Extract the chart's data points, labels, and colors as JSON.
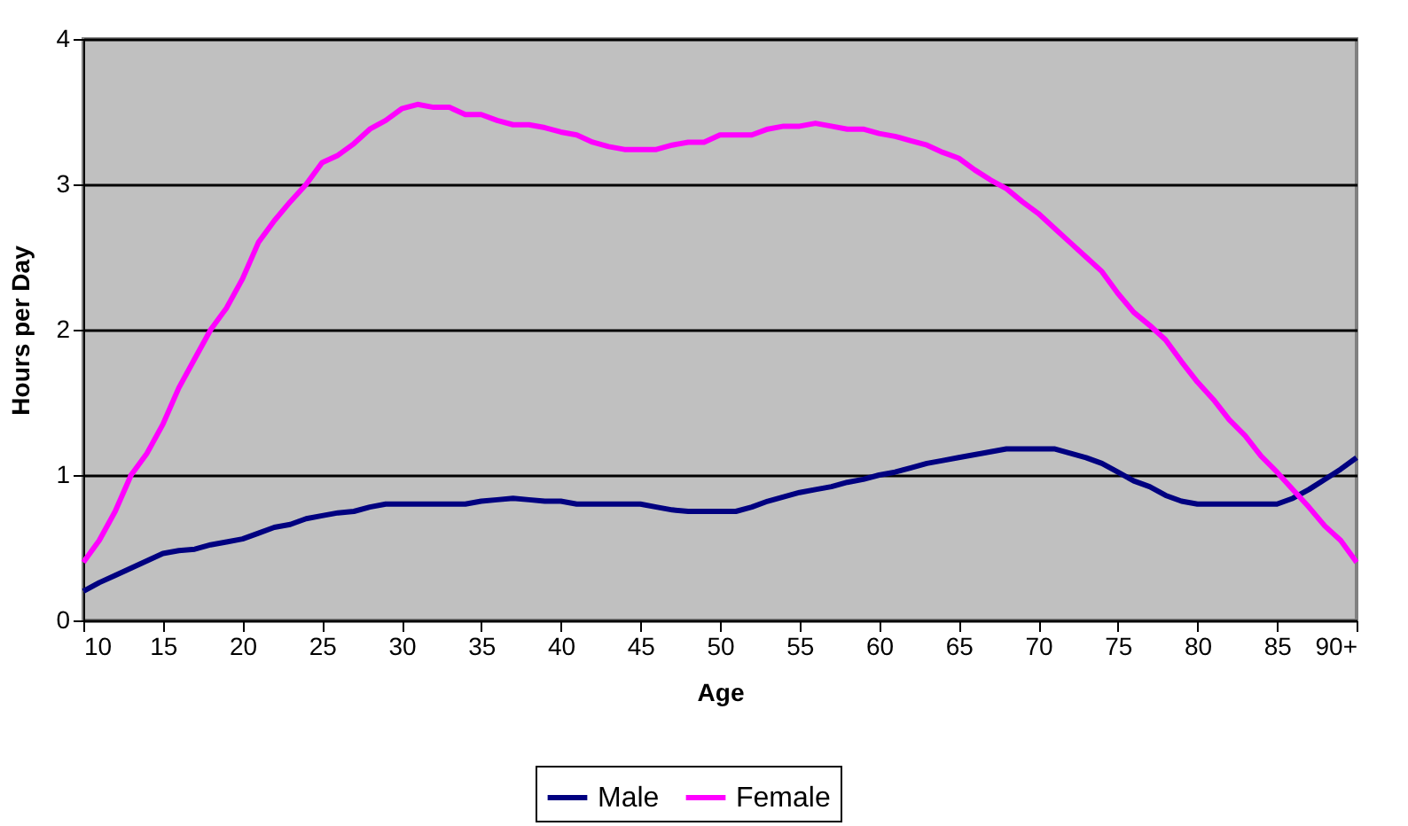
{
  "chart_data": {
    "type": "line",
    "xlabel": "Age",
    "ylabel": "Hours per Day",
    "x": [
      10,
      11,
      12,
      13,
      14,
      15,
      16,
      17,
      18,
      19,
      20,
      21,
      22,
      23,
      24,
      25,
      26,
      27,
      28,
      29,
      30,
      31,
      32,
      33,
      34,
      35,
      36,
      37,
      38,
      39,
      40,
      41,
      42,
      43,
      44,
      45,
      46,
      47,
      48,
      49,
      50,
      51,
      52,
      53,
      54,
      55,
      56,
      57,
      58,
      59,
      60,
      61,
      62,
      63,
      64,
      65,
      66,
      67,
      68,
      69,
      70,
      71,
      72,
      73,
      74,
      75,
      76,
      77,
      78,
      79,
      80,
      81,
      82,
      83,
      84,
      85,
      86,
      87,
      88,
      89,
      90
    ],
    "series": [
      {
        "name": "Male",
        "color": "#000080",
        "values": [
          0.2,
          0.26,
          0.31,
          0.36,
          0.41,
          0.46,
          0.48,
          0.49,
          0.52,
          0.54,
          0.56,
          0.6,
          0.64,
          0.66,
          0.7,
          0.72,
          0.74,
          0.75,
          0.78,
          0.8,
          0.8,
          0.8,
          0.8,
          0.8,
          0.8,
          0.82,
          0.83,
          0.84,
          0.83,
          0.82,
          0.82,
          0.8,
          0.8,
          0.8,
          0.8,
          0.8,
          0.78,
          0.76,
          0.75,
          0.75,
          0.75,
          0.75,
          0.78,
          0.82,
          0.85,
          0.88,
          0.9,
          0.92,
          0.95,
          0.97,
          1.0,
          1.02,
          1.05,
          1.08,
          1.1,
          1.12,
          1.14,
          1.16,
          1.18,
          1.18,
          1.18,
          1.18,
          1.15,
          1.12,
          1.08,
          1.02,
          0.96,
          0.92,
          0.86,
          0.82,
          0.8,
          0.8,
          0.8,
          0.8,
          0.8,
          0.8,
          0.84,
          0.9,
          0.97,
          1.04,
          1.12
        ]
      },
      {
        "name": "Female",
        "color": "#ff00ff",
        "values": [
          0.4,
          0.55,
          0.75,
          1.0,
          1.15,
          1.35,
          1.6,
          1.8,
          2.0,
          2.15,
          2.35,
          2.6,
          2.75,
          2.88,
          3.0,
          3.15,
          3.2,
          3.28,
          3.38,
          3.44,
          3.52,
          3.55,
          3.53,
          3.53,
          3.48,
          3.48,
          3.44,
          3.41,
          3.41,
          3.39,
          3.36,
          3.34,
          3.29,
          3.26,
          3.24,
          3.24,
          3.24,
          3.27,
          3.29,
          3.29,
          3.34,
          3.34,
          3.34,
          3.38,
          3.4,
          3.4,
          3.42,
          3.4,
          3.38,
          3.38,
          3.35,
          3.33,
          3.3,
          3.27,
          3.22,
          3.18,
          3.1,
          3.03,
          2.97,
          2.88,
          2.8,
          2.7,
          2.6,
          2.5,
          2.4,
          2.25,
          2.12,
          2.03,
          1.93,
          1.78,
          1.64,
          1.52,
          1.38,
          1.27,
          1.13,
          1.02,
          0.9,
          0.78,
          0.65,
          0.55,
          0.4
        ]
      }
    ],
    "xlim": [
      10,
      90
    ],
    "xticks": [
      10,
      15,
      20,
      25,
      30,
      35,
      40,
      45,
      50,
      55,
      60,
      65,
      70,
      75,
      80,
      85,
      {
        "value": 90,
        "label": "90+"
      }
    ],
    "ylim": [
      0,
      4
    ],
    "yticks": [
      0,
      1,
      2,
      3,
      4
    ],
    "grid": "y",
    "legend": "bottom",
    "marker": "none",
    "line_style": "solid"
  }
}
